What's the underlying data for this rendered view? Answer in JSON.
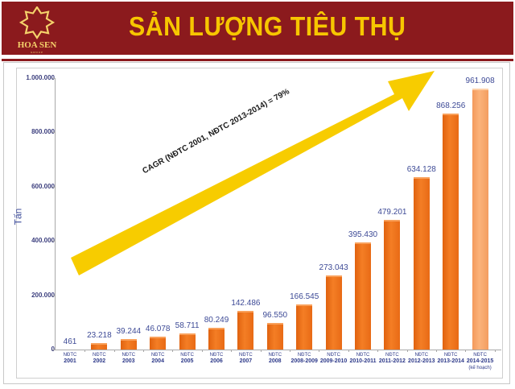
{
  "header": {
    "title": "SẢN LƯỢNG TIÊU THỤ",
    "logo_text": "HOA SEN",
    "logo_sub": "GROUP",
    "bg_color": "#8b1a1d",
    "title_color": "#f7c600"
  },
  "annotation": {
    "cagr_text": "CAGR (NĐTC 2001, NĐTC 2013-2014) = 79%",
    "arrow_color": "#f7cc00"
  },
  "chart_data": {
    "type": "bar",
    "title": "SẢN LƯỢNG TIÊU THỤ",
    "xlabel": "",
    "ylabel": "Tấn",
    "ylim": [
      0,
      1000000
    ],
    "yticks": [
      "0",
      "200.000",
      "400.000",
      "600.000",
      "800.000",
      "1.000.000"
    ],
    "grid": false,
    "legend": null,
    "categories": [
      "NĐTC 2001",
      "NĐTC 2002",
      "NĐTC 2003",
      "NĐTC 2004",
      "NĐTC 2005",
      "NĐTC 2006",
      "NĐTC 2007",
      "NĐTC 2008",
      "NĐTC 2008-2009",
      "NĐTC 2009-2010",
      "NĐTC 2010-2011",
      "NĐTC 2011-2012",
      "NĐTC 2012-2013",
      "NĐTC 2013-2014",
      "NĐTC 2014-2015 (kế hoạch)"
    ],
    "values": [
      461,
      23218,
      39244,
      46078,
      58711,
      80249,
      142486,
      96550,
      166545,
      273043,
      395430,
      479201,
      634128,
      868256,
      961908
    ],
    "value_labels": [
      "461",
      "23.218",
      "39.244",
      "46.078",
      "58.711",
      "80.249",
      "142.486",
      "96.550",
      "166.545",
      "273.043",
      "395.430",
      "479.201",
      "634.128",
      "868.256",
      "961.908"
    ],
    "cat_line1": "NĐTC",
    "cat_years": [
      "2001",
      "2002",
      "2003",
      "2004",
      "2005",
      "2006",
      "2007",
      "2008",
      "2008-2009",
      "2009-2010",
      "2010-2011",
      "2011-2012",
      "2012-2013",
      "2013-2014",
      "2014-2015"
    ],
    "cat_note_last": "(kế hoạch)",
    "annotations": [
      "CAGR (NĐTC 2001, NĐTC 2013-2014) = 79%"
    ],
    "colors": {
      "actual": "#f07a22",
      "plan": "#f9a86b",
      "labels": "#3d4a96"
    }
  }
}
